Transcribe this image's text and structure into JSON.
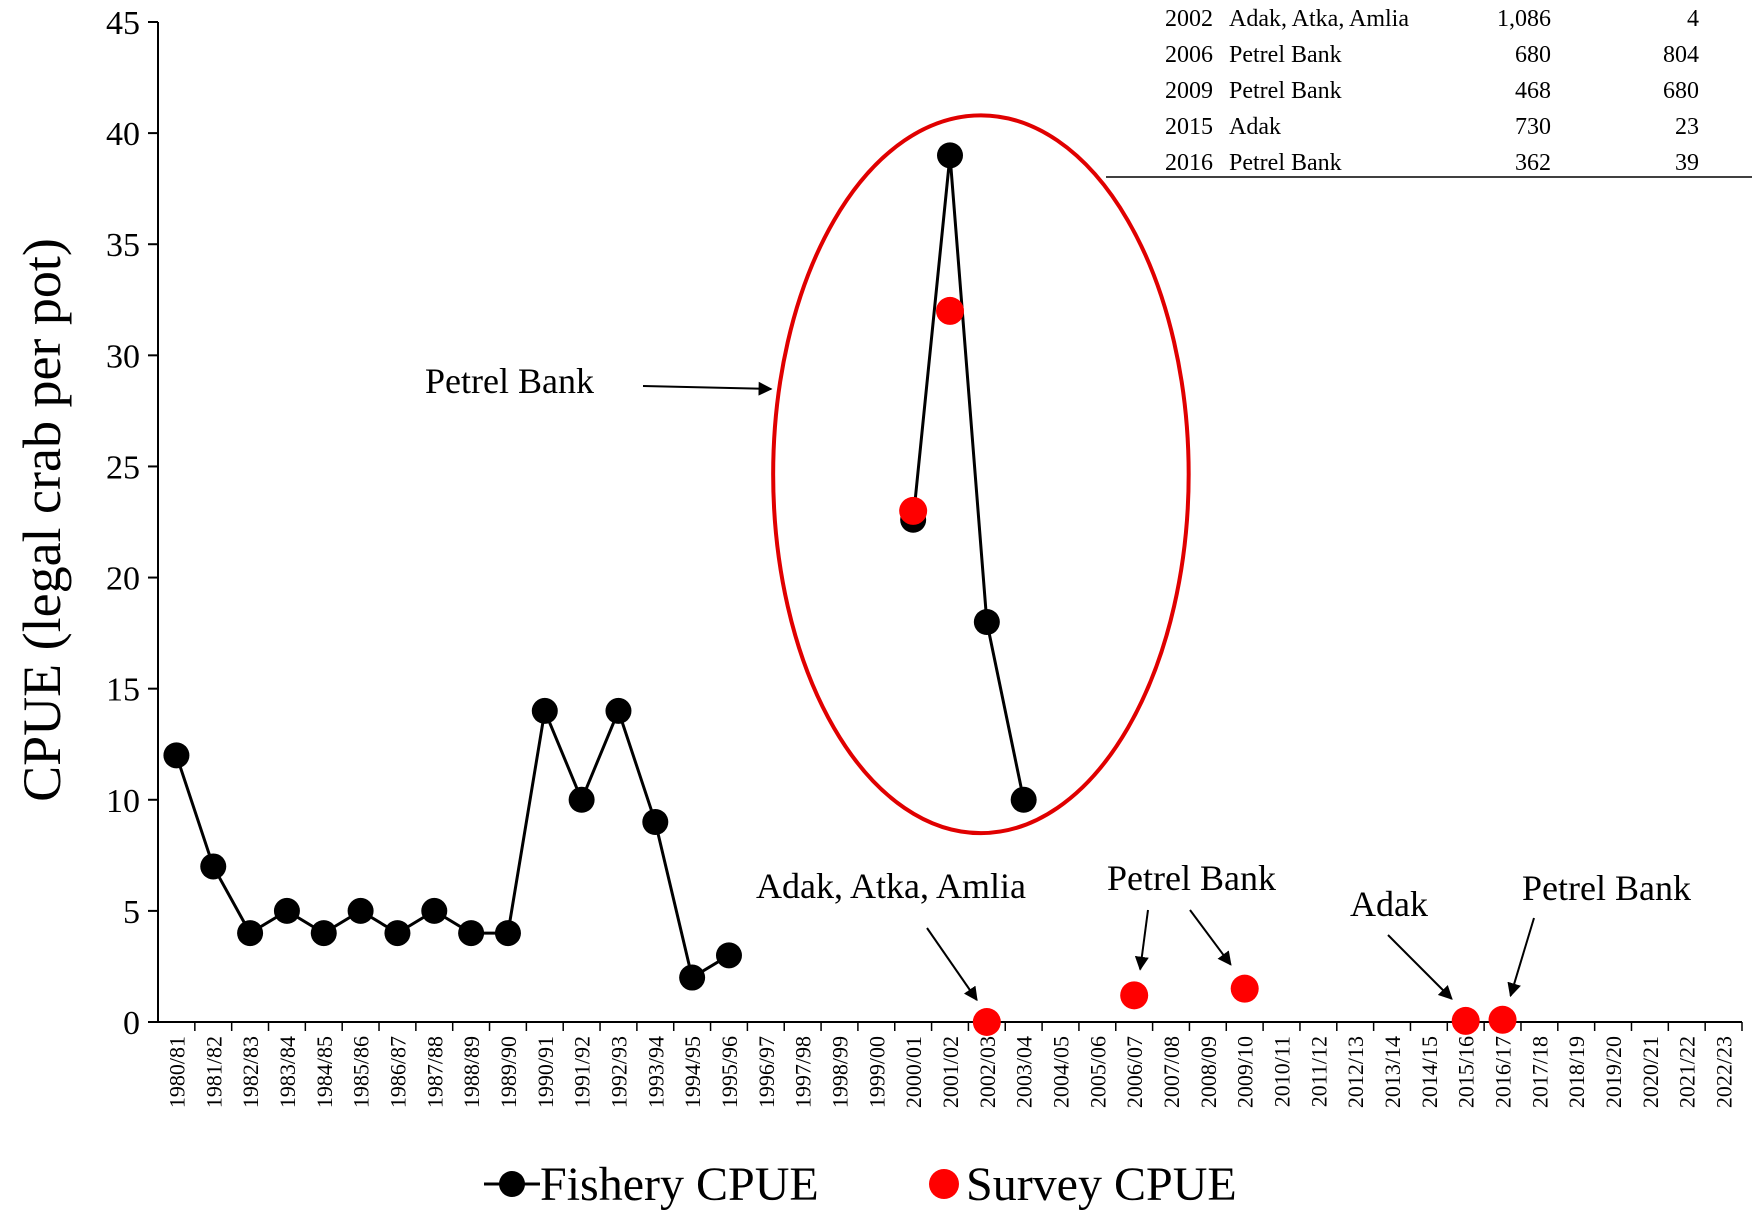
{
  "chart_data": {
    "type": "line",
    "ylabel": "CPUE (legal crab per pot)",
    "xlabel": "",
    "ylim": [
      0,
      45
    ],
    "yticks": [
      0,
      5,
      10,
      15,
      20,
      25,
      30,
      35,
      40,
      45
    ],
    "categories": [
      "1980/81",
      "1981/82",
      "1982/83",
      "1983/84",
      "1984/85",
      "1985/86",
      "1986/87",
      "1987/88",
      "1988/89",
      "1989/90",
      "1990/91",
      "1991/92",
      "1992/93",
      "1993/94",
      "1994/95",
      "1995/96",
      "1996/97",
      "1997/98",
      "1998/99",
      "1999/00",
      "2000/01",
      "2001/02",
      "2002/03",
      "2003/04",
      "2004/05",
      "2005/06",
      "2006/07",
      "2007/08",
      "2008/09",
      "2009/10",
      "2010/11",
      "2011/12",
      "2012/13",
      "2013/14",
      "2014/15",
      "2015/16",
      "2016/17",
      "2017/18",
      "2018/19",
      "2019/20",
      "2020/21",
      "2021/22",
      "2022/23"
    ],
    "series": [
      {
        "name": "Fishery CPUE",
        "color": "#000000",
        "segments": [
          [
            [
              "1980/81",
              12
            ],
            [
              "1981/82",
              7
            ],
            [
              "1982/83",
              4
            ],
            [
              "1983/84",
              5
            ],
            [
              "1984/85",
              4
            ],
            [
              "1985/86",
              5
            ],
            [
              "1986/87",
              4
            ],
            [
              "1987/88",
              5
            ],
            [
              "1988/89",
              4
            ],
            [
              "1989/90",
              4
            ],
            [
              "1990/91",
              14
            ],
            [
              "1991/92",
              10
            ],
            [
              "1992/93",
              14
            ],
            [
              "1993/94",
              9
            ],
            [
              "1994/95",
              2
            ],
            [
              "1995/96",
              3
            ]
          ],
          [
            [
              "2000/01",
              22.6
            ],
            [
              "2001/02",
              39
            ],
            [
              "2002/03",
              18
            ],
            [
              "2003/04",
              10
            ]
          ]
        ]
      },
      {
        "name": "Survey CPUE",
        "color": "#ff0000",
        "points": [
          [
            "2000/01",
            23
          ],
          [
            "2001/02",
            32
          ],
          [
            "2002/03",
            0
          ],
          [
            "2006/07",
            1.2
          ],
          [
            "2009/10",
            1.5
          ],
          [
            "2015/16",
            0.05
          ],
          [
            "2016/17",
            0.1
          ]
        ]
      }
    ],
    "legend": {
      "placement": "bottom",
      "items": [
        "Fishery CPUE",
        "Survey CPUE"
      ]
    },
    "annotations": [
      {
        "text": "Petrel Bank",
        "target": "circled 2000/01-2003/04 points"
      },
      {
        "text": "Adak, Atka, Amlia",
        "target": "2002/03"
      },
      {
        "text": "Petrel Bank",
        "target": "2006/07 and 2009/10"
      },
      {
        "text": "Adak",
        "target": "2015/16"
      },
      {
        "text": "Petrel Bank",
        "target": "2016/17"
      }
    ],
    "table": {
      "rows": [
        [
          "2002",
          "Adak, Atka, Amlia",
          "1,086",
          "4"
        ],
        [
          "2006",
          "Petrel Bank",
          "680",
          "804"
        ],
        [
          "2009",
          "Petrel Bank",
          "468",
          "680"
        ],
        [
          "2015",
          "Adak",
          "730",
          "23"
        ],
        [
          "2016",
          "Petrel Bank",
          "362",
          "39"
        ]
      ]
    },
    "highlight_color": "#e00000"
  }
}
